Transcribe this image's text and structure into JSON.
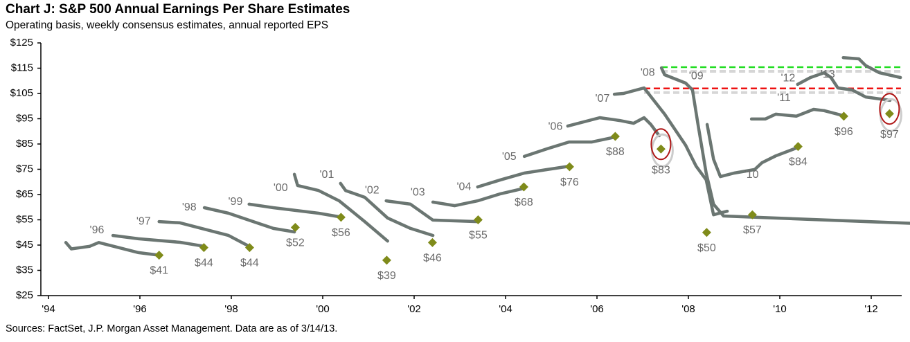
{
  "title": "Chart J: S&P 500 Annual Earnings Per Share Estimates",
  "subtitle": "Operating basis, weekly consensus estimates, annual reported EPS",
  "source": "Sources: FactSet, J.P. Morgan Asset Management. Data are as of 3/14/13.",
  "colors": {
    "estimate_line": "#6b7672",
    "reported_marker": "#7f8b1a",
    "highlight_circle": "#b01818",
    "green_dashed": "#22dd22",
    "red_dashed": "#ee1111",
    "label_text": "#6a6a6a"
  },
  "chart_data": {
    "type": "line",
    "title": "Chart J: S&P 500 Annual Earnings Per Share Estimates",
    "subtitle": "Operating basis, weekly consensus estimates, annual reported EPS",
    "xlim": [
      1994,
      2012.65
    ],
    "ylim": [
      25,
      125
    ],
    "x_ticks": [
      1994,
      1996,
      1998,
      2000,
      2002,
      2004,
      2006,
      2008,
      2010,
      2012
    ],
    "x_tick_labels": [
      "'94",
      "'96",
      "'98",
      "'00",
      "'02",
      "'04",
      "'06",
      "'08",
      "'10",
      "'12"
    ],
    "y_ticks": [
      25,
      35,
      45,
      55,
      65,
      75,
      85,
      95,
      105,
      115,
      125
    ],
    "y_tick_labels": [
      "$25",
      "$35",
      "$45",
      "$55",
      "$65",
      "$75",
      "$85",
      "$95",
      "$105",
      "$115",
      "$125"
    ],
    "grid": false,
    "legend": "none",
    "estimate_series": [
      {
        "points": [
          [
            1994.38,
            46
          ],
          [
            1994.5,
            43.5
          ],
          [
            1994.9,
            44.5
          ],
          [
            1995.1,
            46
          ],
          [
            1995.97,
            42
          ],
          [
            1996.42,
            41
          ]
        ]
      },
      {
        "points": [
          [
            1995.41,
            48.8
          ],
          [
            1995.97,
            47.5
          ],
          [
            1996.88,
            46.1
          ],
          [
            1997.41,
            44.5
          ]
        ]
      },
      {
        "points": [
          [
            1996.42,
            54.3
          ],
          [
            1996.88,
            53.8
          ],
          [
            1997.94,
            48.8
          ],
          [
            1998.39,
            44.5
          ]
        ]
      },
      {
        "points": [
          [
            1997.41,
            59.8
          ],
          [
            1997.94,
            57.6
          ],
          [
            1998.92,
            51.6
          ],
          [
            1999.38,
            50.2
          ]
        ]
      },
      {
        "points": [
          [
            1998.39,
            61.2
          ],
          [
            1998.92,
            59.8
          ],
          [
            1999.91,
            57.6
          ],
          [
            2000.36,
            56.2
          ]
        ]
      },
      {
        "points": [
          [
            1999.38,
            73
          ],
          [
            1999.45,
            68.6
          ],
          [
            1999.91,
            66.6
          ],
          [
            2000.36,
            62.5
          ],
          [
            2000.92,
            54.3
          ],
          [
            2001.42,
            46.6
          ]
        ]
      },
      {
        "points": [
          [
            2000.39,
            69.4
          ],
          [
            2000.5,
            66.6
          ],
          [
            2000.92,
            63.9
          ],
          [
            2001.42,
            55.7
          ],
          [
            2001.92,
            51.6
          ],
          [
            2002.41,
            48.8
          ]
        ]
      },
      {
        "points": [
          [
            2001.39,
            62.5
          ],
          [
            2001.92,
            61.2
          ],
          [
            2002.41,
            54.9
          ],
          [
            2003.39,
            54.3
          ]
        ]
      },
      {
        "points": [
          [
            2002.41,
            62
          ],
          [
            2002.89,
            60.6
          ],
          [
            2003.39,
            62.5
          ],
          [
            2003.89,
            65.3
          ],
          [
            2004.41,
            67.5
          ]
        ]
      },
      {
        "points": [
          [
            2003.39,
            68
          ],
          [
            2003.89,
            70.8
          ],
          [
            2004.41,
            73.5
          ],
          [
            2004.91,
            74.9
          ],
          [
            2005.39,
            76.2
          ]
        ]
      },
      {
        "points": [
          [
            2004.41,
            80.1
          ],
          [
            2004.91,
            83.1
          ],
          [
            2005.39,
            85.8
          ],
          [
            2005.89,
            85.8
          ],
          [
            2006.39,
            87.7
          ]
        ]
      },
      {
        "points": [
          [
            2005.36,
            92.1
          ],
          [
            2006.06,
            95.4
          ],
          [
            2006.5,
            94.3
          ],
          [
            2006.8,
            93.2
          ],
          [
            2007.03,
            95.4
          ],
          [
            2007.18,
            92.7
          ],
          [
            2007.36,
            88.3
          ]
        ]
      },
      {
        "points": [
          [
            2006.38,
            104.7
          ],
          [
            2006.58,
            105
          ],
          [
            2007.03,
            107.2
          ],
          [
            2007.48,
            96.8
          ],
          [
            2007.94,
            84.5
          ],
          [
            2008.17,
            76.2
          ],
          [
            2008.39,
            70.8
          ],
          [
            2008.55,
            57
          ],
          [
            2008.85,
            58.4
          ]
        ]
      },
      {
        "points": [
          [
            2007.41,
            115.1
          ],
          [
            2007.48,
            112.4
          ],
          [
            2007.94,
            109.1
          ],
          [
            2008.09,
            106.4
          ],
          [
            2008.21,
            92.7
          ],
          [
            2008.39,
            73.5
          ],
          [
            2008.55,
            61.2
          ],
          [
            2008.77,
            56.5
          ],
          [
            2089.0,
            0
          ]
        ]
      },
      {
        "points": [
          [
            2008.41,
            92.7
          ],
          [
            2008.55,
            79
          ],
          [
            2008.7,
            72.1
          ],
          [
            2009.0,
            73.5
          ],
          [
            2009.45,
            74.9
          ],
          [
            2009.61,
            77.6
          ],
          [
            2009.91,
            80.3
          ],
          [
            2010.39,
            83.6
          ]
        ]
      },
      {
        "points": [
          [
            2009.38,
            94.9
          ],
          [
            2009.68,
            94.9
          ],
          [
            2009.91,
            96.8
          ],
          [
            2010.36,
            96
          ],
          [
            2010.74,
            98.7
          ],
          [
            2010.97,
            98.2
          ],
          [
            2011.39,
            96.2
          ]
        ]
      },
      {
        "points": [
          [
            2010.39,
            108.6
          ],
          [
            2010.67,
            111.3
          ],
          [
            2010.97,
            113.2
          ],
          [
            2011.12,
            111.3
          ],
          [
            2011.27,
            107.2
          ],
          [
            2011.58,
            106.4
          ],
          [
            2011.88,
            103.6
          ],
          [
            2012.41,
            102.3
          ]
        ]
      },
      {
        "points": [
          [
            2011.39,
            119.2
          ],
          [
            2011.73,
            118.7
          ],
          [
            2011.88,
            116
          ],
          [
            2012.18,
            113.2
          ],
          [
            2012.64,
            111.3
          ]
        ]
      }
    ],
    "series_labels": [
      {
        "text": "'96",
        "at": [
          1995.06,
          50.8
        ]
      },
      {
        "text": "'97",
        "at": [
          1996.08,
          54.3
        ]
      },
      {
        "text": "'98",
        "at": [
          1997.08,
          59.8
        ]
      },
      {
        "text": "'99",
        "at": [
          1998.09,
          62
        ]
      },
      {
        "text": "'00",
        "at": [
          1999.08,
          67.5
        ]
      },
      {
        "text": "'01",
        "at": [
          2000.09,
          72.7
        ]
      },
      {
        "text": "'02",
        "at": [
          2001.08,
          66.6
        ]
      },
      {
        "text": "'03",
        "at": [
          2002.08,
          65.8
        ]
      },
      {
        "text": "'04",
        "at": [
          2003.09,
          68
        ]
      },
      {
        "text": "'05",
        "at": [
          2004.08,
          79.8
        ]
      },
      {
        "text": "'06",
        "at": [
          2005.09,
          91.8
        ]
      },
      {
        "text": "'07",
        "at": [
          2006.12,
          102.8
        ]
      },
      {
        "text": "'08",
        "at": [
          2007.11,
          113.2
        ]
      },
      {
        "text": "'09",
        "at": [
          2008.17,
          111.8
        ]
      },
      {
        "text": "'10",
        "at": [
          2009.38,
          72.7
        ]
      },
      {
        "text": "'11",
        "at": [
          2010.09,
          103.1
        ]
      },
      {
        "text": "'12",
        "at": [
          2010.18,
          111
        ]
      },
      {
        "text": "'13",
        "at": [
          2011.05,
          112.4
        ]
      }
    ],
    "reported_eps": [
      {
        "x": 1996.42,
        "y": 41,
        "label": "$41"
      },
      {
        "x": 1997.4,
        "y": 44,
        "label": "$44"
      },
      {
        "x": 1998.4,
        "y": 44,
        "label": "$44"
      },
      {
        "x": 1999.4,
        "y": 52,
        "label": "$52"
      },
      {
        "x": 2000.4,
        "y": 56,
        "label": "$56"
      },
      {
        "x": 2001.4,
        "y": 39,
        "label": "$39"
      },
      {
        "x": 2002.4,
        "y": 46,
        "label": "$46"
      },
      {
        "x": 2003.4,
        "y": 55,
        "label": "$55"
      },
      {
        "x": 2004.4,
        "y": 68,
        "label": "$68"
      },
      {
        "x": 2005.4,
        "y": 76,
        "label": "$76"
      },
      {
        "x": 2006.4,
        "y": 88,
        "label": "$88"
      },
      {
        "x": 2007.4,
        "y": 83,
        "label": "$83",
        "circled": true
      },
      {
        "x": 2008.4,
        "y": 50,
        "label": "$50"
      },
      {
        "x": 2009.4,
        "y": 57,
        "label": "$57"
      },
      {
        "x": 2010.4,
        "y": 84,
        "label": "$84"
      },
      {
        "x": 2011.4,
        "y": 96,
        "label": "$96"
      },
      {
        "x": 2012.4,
        "y": 97,
        "label": "$97",
        "circled": true
      }
    ],
    "reference_lines": [
      {
        "y": 115.4,
        "x_from": 2007.41,
        "x_to": 2012.65,
        "style": "dashed",
        "color": "green"
      },
      {
        "y": 107,
        "x_from": 2007.03,
        "x_to": 2012.65,
        "style": "dashed",
        "color": "red"
      }
    ]
  }
}
